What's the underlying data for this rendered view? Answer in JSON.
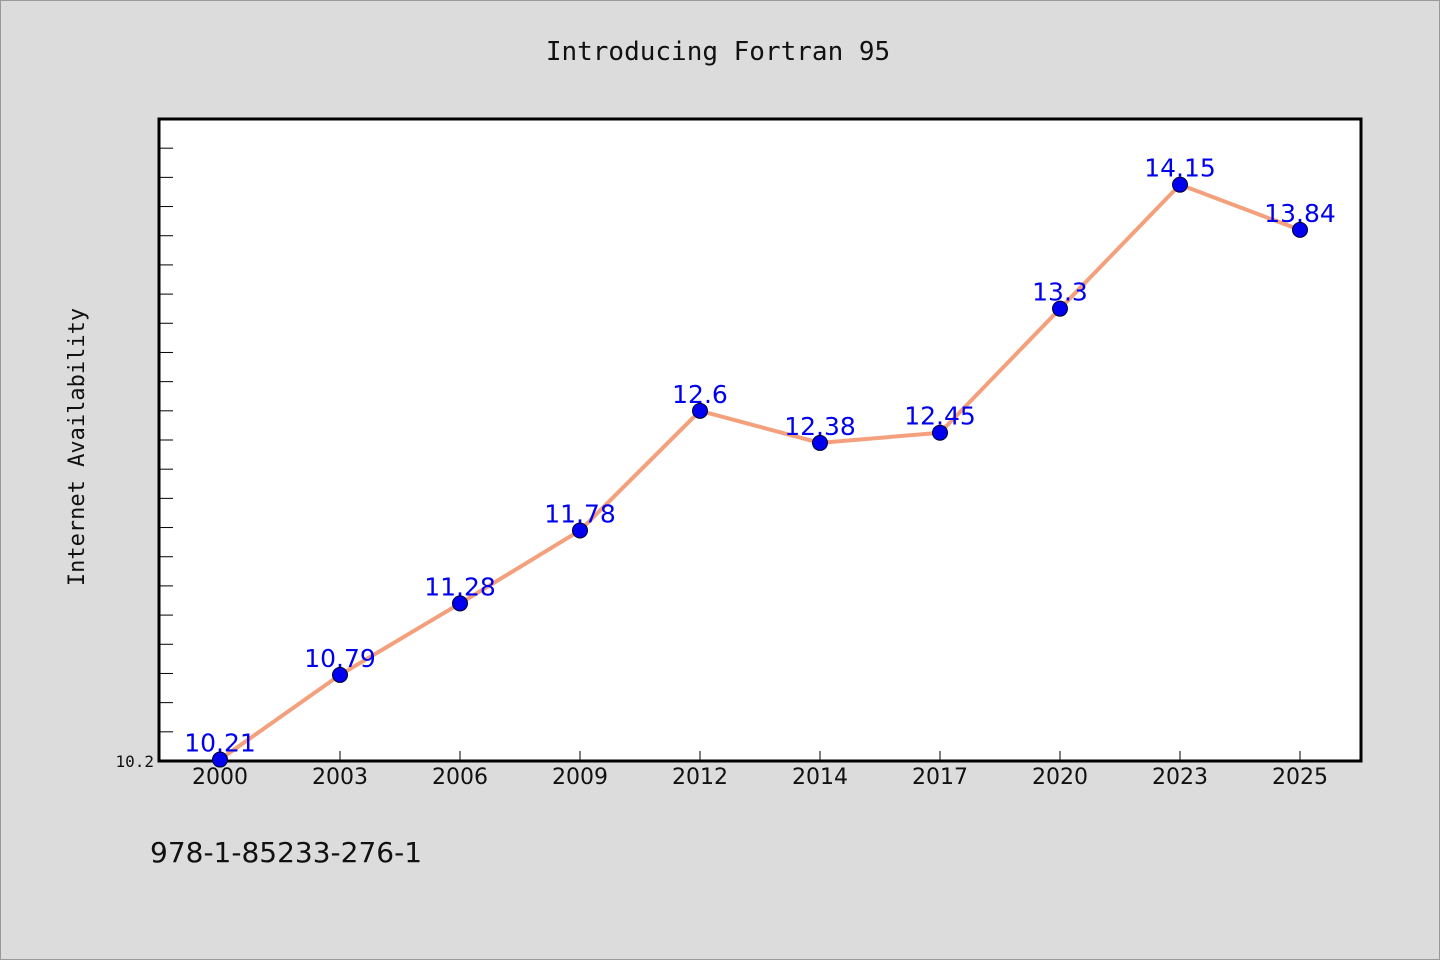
{
  "chart_data": {
    "type": "line",
    "title": "Introducing Fortran 95",
    "xlabel": "",
    "ylabel": "Internet Availability",
    "categories": [
      "2000",
      "2003",
      "2006",
      "2009",
      "2012",
      "2014",
      "2017",
      "2020",
      "2023",
      "2025"
    ],
    "series": [
      {
        "values": [
          10.21,
          10.79,
          11.28,
          11.78,
          12.6,
          12.38,
          12.45,
          13.3,
          14.15,
          13.84
        ]
      }
    ],
    "data_labels": [
      "10.21",
      "10.79",
      "11.28",
      "11.78",
      "12.6",
      "12.38",
      "12.45",
      "13.3",
      "14.15",
      "13.84"
    ],
    "y_tick_labels": [
      "10.2"
    ],
    "ylim": [
      10.2,
      14.6
    ],
    "grid": false,
    "line_color": "#f4a07c",
    "marker_color": "#0000ee",
    "label_color": "#0000ee",
    "plot_background": "#ffffff",
    "figure_background": "#dcdcdc"
  },
  "footer": {
    "text": "978-1-85233-276-1"
  }
}
